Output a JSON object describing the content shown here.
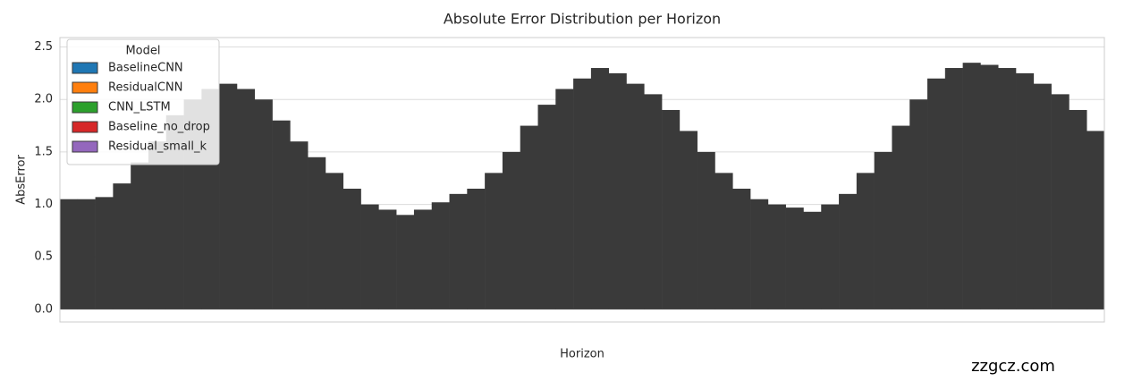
{
  "chart_data": {
    "type": "bar",
    "title": "Absolute Error Distribution per Horizon",
    "x_label": "Horizon",
    "y_label": "AbsError",
    "legend_title": "Model",
    "series": [
      {
        "name": "BaselineCNN",
        "color": "#1f77b4"
      },
      {
        "name": "ResidualCNN",
        "color": "#ff7f0e"
      },
      {
        "name": "CNN_LSTM",
        "color": "#2ca02c"
      },
      {
        "name": "Baseline_no_drop",
        "color": "#d62728"
      },
      {
        "name": "Residual_small_k",
        "color": "#9467bd"
      }
    ],
    "values": [
      1.05,
      1.05,
      1.07,
      1.2,
      1.4,
      1.6,
      1.85,
      2.0,
      2.1,
      2.15,
      2.1,
      2.0,
      1.8,
      1.6,
      1.45,
      1.3,
      1.15,
      1.0,
      0.95,
      0.9,
      0.95,
      1.02,
      1.1,
      1.15,
      1.3,
      1.5,
      1.75,
      1.95,
      2.1,
      2.2,
      2.3,
      2.25,
      2.15,
      2.05,
      1.9,
      1.7,
      1.5,
      1.3,
      1.15,
      1.05,
      1.0,
      0.97,
      0.93,
      1.0,
      1.1,
      1.3,
      1.5,
      1.75,
      2.0,
      2.2,
      2.3,
      2.35,
      2.33,
      2.3,
      2.25,
      2.15,
      2.05,
      1.9,
      1.7
    ],
    "bar_color": "#3a3a3a",
    "ylim": [
      -0.12,
      2.59
    ],
    "yticks": [
      {
        "value": 0,
        "label": "0.0"
      },
      {
        "value": 0.5,
        "label": "0.5"
      },
      {
        "value": 1,
        "label": "1.0"
      },
      {
        "value": 1.5,
        "label": "1.5"
      },
      {
        "value": 2,
        "label": "2.0"
      },
      {
        "value": 2.5,
        "label": "2.5"
      }
    ],
    "grid": true,
    "legend_position": "upper left",
    "watermark": "zzgcz.com"
  }
}
